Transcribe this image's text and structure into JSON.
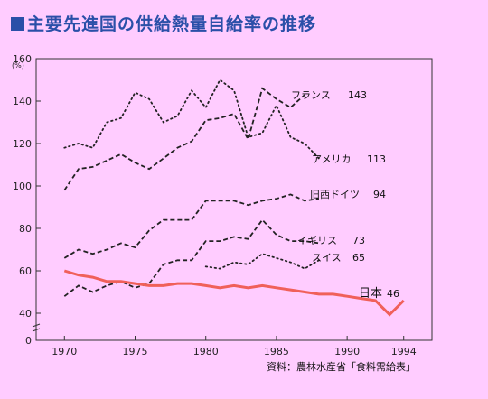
{
  "title": "主要先進国の供給熱量自給率の推移",
  "chart_data": {
    "type": "line",
    "title": "主要先進国の供給熱量自給率の推移",
    "ylabel": "(%)",
    "xlim": [
      1968,
      1996
    ],
    "ylim": [
      0,
      160
    ],
    "yticks": [
      0,
      40,
      60,
      80,
      100,
      120,
      140,
      160
    ],
    "xticks": [
      1970,
      1975,
      1980,
      1985,
      1990,
      1994
    ],
    "source": "資料：農林水産省「食料需給表」",
    "series": [
      {
        "name": "フランス",
        "end_value_label": "143",
        "color": "#222222",
        "style": "dashed",
        "x": [
          1970,
          1971,
          1972,
          1973,
          1974,
          1975,
          1976,
          1977,
          1978,
          1979,
          1980,
          1981,
          1982,
          1983,
          1984,
          1985,
          1986,
          1987
        ],
        "values": [
          98,
          108,
          109,
          112,
          115,
          111,
          108,
          113,
          118,
          121,
          131,
          132,
          134,
          122,
          146,
          141,
          137,
          143
        ]
      },
      {
        "name": "アメリカ",
        "end_value_label": "113",
        "color": "#222222",
        "style": "dotted",
        "x": [
          1970,
          1971,
          1972,
          1973,
          1974,
          1975,
          1976,
          1977,
          1978,
          1979,
          1980,
          1981,
          1982,
          1983,
          1984,
          1985,
          1986,
          1987,
          1988
        ],
        "values": [
          118,
          120,
          118,
          130,
          132,
          144,
          141,
          130,
          133,
          145,
          137,
          150,
          145,
          123,
          125,
          138,
          123,
          120,
          113
        ]
      },
      {
        "name": "旧西ドイツ",
        "end_value_label": "94",
        "color": "#222222",
        "style": "dashed",
        "x": [
          1970,
          1971,
          1972,
          1973,
          1974,
          1975,
          1976,
          1977,
          1978,
          1979,
          1980,
          1981,
          1982,
          1983,
          1984,
          1985,
          1986,
          1987,
          1988
        ],
        "values": [
          66,
          70,
          68,
          70,
          73,
          71,
          79,
          84,
          84,
          84,
          93,
          93,
          93,
          91,
          93,
          94,
          96,
          93,
          94
        ]
      },
      {
        "name": "イギリス",
        "end_value_label": "73",
        "color": "#222222",
        "style": "dashed",
        "x": [
          1970,
          1971,
          1972,
          1973,
          1974,
          1975,
          1976,
          1977,
          1978,
          1979,
          1980,
          1981,
          1982,
          1983,
          1984,
          1985,
          1986,
          1987,
          1988
        ],
        "values": [
          48,
          53,
          50,
          53,
          55,
          52,
          54,
          63,
          65,
          65,
          74,
          74,
          76,
          75,
          84,
          77,
          74,
          74,
          73
        ]
      },
      {
        "name": "スイス",
        "end_value_label": "65",
        "color": "#222222",
        "style": "dotted",
        "x": [
          1980,
          1981,
          1982,
          1983,
          1984,
          1985,
          1986,
          1987,
          1988
        ],
        "values": [
          62,
          61,
          64,
          63,
          68,
          66,
          64,
          61,
          65
        ]
      },
      {
        "name": "日本",
        "end_value_label": "46",
        "color": "#f0605a",
        "style": "solid",
        "x": [
          1970,
          1971,
          1972,
          1973,
          1974,
          1975,
          1976,
          1977,
          1978,
          1979,
          1980,
          1981,
          1982,
          1983,
          1984,
          1985,
          1986,
          1987,
          1988,
          1989,
          1990,
          1991,
          1992,
          1993,
          1994
        ],
        "values": [
          60,
          58,
          57,
          55,
          55,
          54,
          53,
          53,
          54,
          54,
          53,
          52,
          53,
          52,
          53,
          52,
          51,
          50,
          49,
          49,
          48,
          47,
          46,
          38,
          46
        ]
      }
    ]
  }
}
